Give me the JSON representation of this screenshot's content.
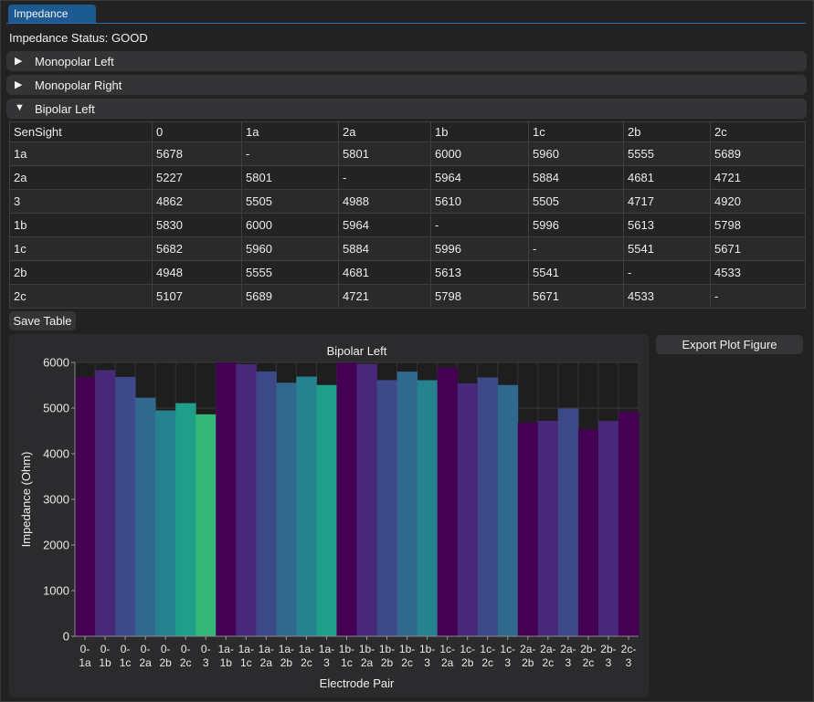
{
  "tab": {
    "label": "Impedance"
  },
  "status": {
    "text": "Impedance Status: GOOD"
  },
  "sections": [
    {
      "label": "Monopolar Left",
      "arrow": "▶"
    },
    {
      "label": "Monopolar Right",
      "arrow": "▶"
    },
    {
      "label": "Bipolar Left",
      "arrow": "▼"
    }
  ],
  "table": {
    "headers": [
      "SenSight",
      "0",
      "1a",
      "2a",
      "1b",
      "1c",
      "2b",
      "2c"
    ],
    "rows": [
      [
        "1a",
        "5678",
        "-",
        "5801",
        "6000",
        "5960",
        "5555",
        "5689"
      ],
      [
        "2a",
        "5227",
        "5801",
        "-",
        "5964",
        "5884",
        "4681",
        "4721"
      ],
      [
        "3",
        "4862",
        "5505",
        "4988",
        "5610",
        "5505",
        "4717",
        "4920"
      ],
      [
        "1b",
        "5830",
        "6000",
        "5964",
        "-",
        "5996",
        "5613",
        "5798"
      ],
      [
        "1c",
        "5682",
        "5960",
        "5884",
        "5996",
        "-",
        "5541",
        "5671"
      ],
      [
        "2b",
        "4948",
        "5555",
        "4681",
        "5613",
        "5541",
        "-",
        "4533"
      ],
      [
        "2c",
        "5107",
        "5689",
        "4721",
        "5798",
        "5671",
        "4533",
        "-"
      ]
    ]
  },
  "buttons": {
    "save_table": "Save Table",
    "export_plot": "Export Plot Figure"
  },
  "chart_data": {
    "type": "bar",
    "title": "Bipolar Left",
    "xlabel": "Electrode Pair",
    "ylabel": "Impedance (Ohm)",
    "ylim": [
      0,
      6000
    ],
    "yticks": [
      0,
      1000,
      2000,
      3000,
      4000,
      5000,
      6000
    ],
    "grid": true,
    "categories": [
      "0-1a",
      "0-1b",
      "0-1c",
      "0-2a",
      "0-2b",
      "0-2c",
      "0-3",
      "1a-1b",
      "1a-1c",
      "1a-2a",
      "1a-2b",
      "1a-2c",
      "1a-3",
      "1b-1c",
      "1b-2a",
      "1b-2b",
      "1b-2c",
      "1b-3",
      "1c-2a",
      "1c-2b",
      "1c-2c",
      "1c-3",
      "2a-2b",
      "2a-2c",
      "2a-3",
      "2b-2c",
      "2b-3",
      "2c-3"
    ],
    "values": [
      5678,
      5830,
      5682,
      5227,
      4948,
      5107,
      4862,
      6000,
      5960,
      5801,
      5555,
      5689,
      5505,
      5996,
      5964,
      5613,
      5798,
      5610,
      5884,
      5541,
      5671,
      5505,
      4681,
      4721,
      4988,
      4533,
      4717,
      4920
    ],
    "colors": [
      "#440154",
      "#482878",
      "#3e4989",
      "#31688e",
      "#26828e",
      "#1f9e89",
      "#35b779",
      "#6ece58",
      "#b5de2b",
      "#fde725"
    ],
    "color_groups": [
      7,
      6,
      5,
      4,
      3,
      2,
      1
    ]
  }
}
